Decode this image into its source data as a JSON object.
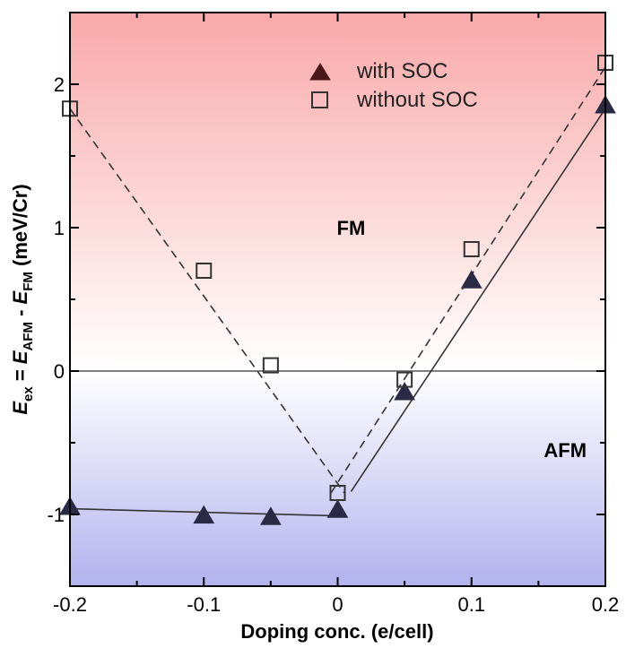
{
  "chart_data": {
    "type": "scatter",
    "title": "",
    "xlabel": "Doping conc. (e/cell)",
    "ylabel": {
      "E1": "E",
      "E1_sub": "ex",
      "eq": " = ",
      "E2": "E",
      "E2_sub": "AFM",
      "minus": " - ",
      "E3": "E",
      "E3_sub": "FM",
      "unit": " (meV/Cr)"
    },
    "xlim": [
      -0.2,
      0.2
    ],
    "ylim": [
      -1.5,
      2.5
    ],
    "x_ticks": [
      -0.2,
      -0.1,
      0,
      0.1,
      0.2
    ],
    "x_tick_labels": [
      "-0.2",
      "-0.1",
      "0",
      "0.1",
      "0.2"
    ],
    "y_ticks": [
      -1,
      0,
      1,
      2
    ],
    "y_tick_labels": [
      "-1",
      "0",
      "1",
      "2"
    ],
    "region_labels": [
      {
        "text": "FM",
        "x": 0.01,
        "y": 0.95
      },
      {
        "text": "AFM",
        "x": 0.17,
        "y": -0.6
      }
    ],
    "background": {
      "top_color": "#f9a9a9",
      "mid_color": "#ffffff",
      "bottom_color": "#b2b2ee"
    },
    "series": [
      {
        "name": "with SOC",
        "marker": "filled-triangle",
        "color": "#2a2a44",
        "x": [
          -0.2,
          -0.1,
          -0.05,
          0,
          0.05,
          0.1,
          0.2
        ],
        "y": [
          -0.95,
          -1.01,
          -1.02,
          -0.97,
          -0.15,
          0.63,
          1.85
        ],
        "fit_lines": [
          {
            "style": "solid",
            "points": [
              [
                -0.2,
                -0.96
              ],
              [
                0,
                -1.01
              ]
            ]
          },
          {
            "style": "solid",
            "points": [
              [
                0.01,
                -0.84
              ],
              [
                0.2,
                1.83
              ]
            ]
          }
        ]
      },
      {
        "name": "without SOC",
        "marker": "open-square",
        "color": "#333333",
        "x": [
          -0.2,
          -0.1,
          -0.05,
          0,
          0.05,
          0.1,
          0.2
        ],
        "y": [
          1.83,
          0.7,
          0.04,
          -0.85,
          -0.06,
          0.85,
          2.15
        ],
        "fit_lines": [
          {
            "style": "dashed",
            "points": [
              [
                -0.2,
                1.83
              ],
              [
                0.005,
                -0.85
              ]
            ]
          },
          {
            "style": "dashed",
            "points": [
              [
                -0.005,
                -0.85
              ],
              [
                0.2,
                2.12
              ]
            ]
          }
        ]
      }
    ],
    "legend": {
      "placement": "top-right",
      "entries": [
        "with SOC",
        "without SOC"
      ]
    }
  }
}
